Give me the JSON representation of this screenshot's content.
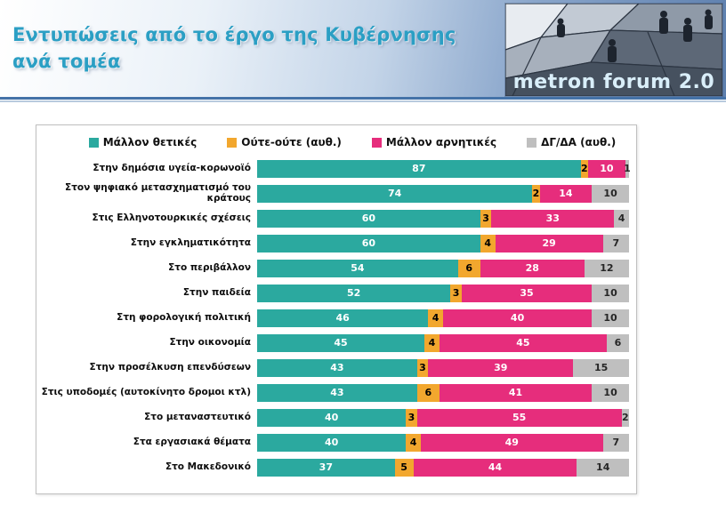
{
  "header": {
    "title_line1": "Εντυπώσεις από το έργο της Κυβέρνησης",
    "title_line2": "ανά τομέα",
    "logo_text": "metron forum 2.0"
  },
  "chart_data": {
    "type": "bar",
    "orientation": "horizontal",
    "stacked": true,
    "xlim": [
      0,
      100
    ],
    "grid": false,
    "legend_position": "top",
    "categories": [
      "Στην δημόσια υγεία-κορωνοϊό",
      "Στον ψηφιακό μετασχηματισμό του κράτους",
      "Στις Ελληνοτουρκικές σχέσεις",
      "Στην εγκληματικότητα",
      "Στο περιβάλλον",
      "Στην παιδεία",
      "Στη φορολογική πολιτική",
      "Στην οικονομία",
      "Στην προσέλκυση επενδύσεων",
      "Στις υποδομές (αυτοκίνητο δρομοι κτλ)",
      "Στο μεταναστευτικό",
      "Στα εργασιακά θέματα",
      "Στο Μακεδονικό"
    ],
    "series": [
      {
        "name": "Μάλλον θετικές",
        "color": "#2BA99F",
        "value_text_color": "#FFFFFF",
        "values": [
          87,
          74,
          60,
          60,
          54,
          52,
          46,
          45,
          43,
          43,
          40,
          40,
          37
        ]
      },
      {
        "name": "Ούτε-ούτε  (αυθ.)",
        "color": "#F2A72E",
        "value_text_color": "#000000",
        "values": [
          2,
          2,
          3,
          4,
          6,
          3,
          4,
          4,
          3,
          6,
          3,
          4,
          5
        ]
      },
      {
        "name": "Μάλλον αρνητικές",
        "color": "#E62D7C",
        "value_text_color": "#FFFFFF",
        "values": [
          10,
          14,
          33,
          29,
          28,
          35,
          40,
          45,
          39,
          41,
          55,
          49,
          44
        ]
      },
      {
        "name": "ΔΓ/ΔΑ (αυθ.)",
        "color": "#BFBFBF",
        "value_text_color": "#262626",
        "values": [
          1,
          10,
          4,
          7,
          12,
          10,
          10,
          6,
          15,
          10,
          2,
          7,
          14
        ]
      }
    ]
  }
}
